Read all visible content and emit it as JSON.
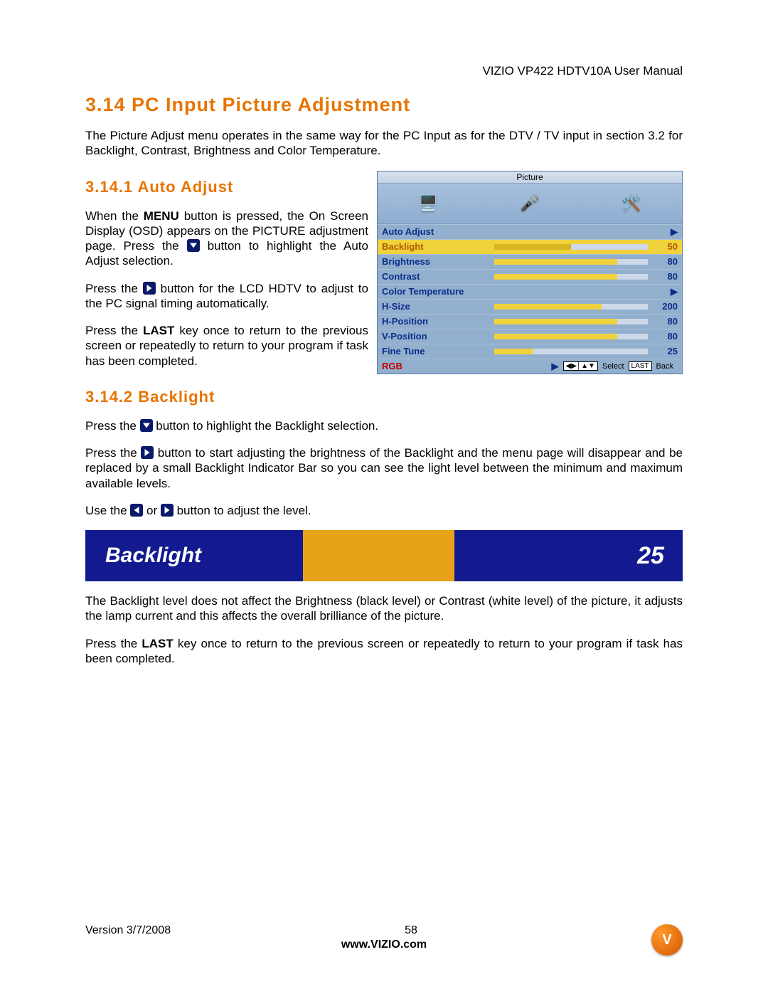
{
  "header": {
    "text": "VIZIO VP422 HDTV10A User Manual"
  },
  "h1": "3.14 PC Input Picture Adjustment",
  "intro": "The Picture Adjust menu operates in the same way for the PC Input as for the DTV / TV input in section 3.2 for Backlight, Contrast, Brightness and Color Temperature.",
  "s1": {
    "title": "3.14.1 Auto Adjust",
    "p1a": "When the ",
    "p1b": "MENU",
    "p1c": " button is pressed, the On Screen Display (OSD) appears on the PICTURE adjustment page.  Press the ",
    "p1d": " button to highlight the Auto Adjust selection.",
    "p2a": "Press the ",
    "p2b": " button for the LCD HDTV to adjust to the PC signal timing automatically.",
    "p3a": "Press the ",
    "p3b": "LAST",
    "p3c": " key once to return to the previous screen or repeatedly to return to your program if task has been completed."
  },
  "osd": {
    "title": "Picture",
    "rows": [
      {
        "label": "Auto Adjust",
        "value": "▶",
        "type": "arrow",
        "fillPct": 0
      },
      {
        "label": "Backlight",
        "value": "50",
        "type": "sel",
        "fillPct": 50
      },
      {
        "label": "Brightness",
        "value": "80",
        "type": "bar",
        "fillPct": 80
      },
      {
        "label": "Contrast",
        "value": "80",
        "type": "bar",
        "fillPct": 80
      },
      {
        "label": "Color Temperature",
        "value": "▶",
        "type": "arrow",
        "fillPct": 0
      },
      {
        "label": "H-Size",
        "value": "200",
        "type": "bar",
        "fillPct": 70
      },
      {
        "label": "H-Position",
        "value": "80",
        "type": "bar",
        "fillPct": 80
      },
      {
        "label": "V-Position",
        "value": "80",
        "type": "bar",
        "fillPct": 80
      },
      {
        "label": "Fine Tune",
        "value": "25",
        "type": "bar",
        "fillPct": 25
      },
      {
        "label": "RGB",
        "value": "▶",
        "type": "rgb",
        "fillPct": 0
      }
    ],
    "footSelect": "Select",
    "footBack": "Back",
    "footLast": "LAST",
    "footNav": "◀▶│▲▼"
  },
  "s2": {
    "title": "3.14.2 Backlight",
    "p1a": "Press the ",
    "p1b": " button to highlight the Backlight selection.",
    "p2a": "Press the ",
    "p2b": " button to start adjusting the brightness of the Backlight and the menu page will disappear and be replaced by a small Backlight Indicator Bar so you can see the light level between the minimum and maximum available levels.",
    "p3a": "Use the ",
    "p3b": " or ",
    "p3c": " button to adjust the level.",
    "bar": {
      "label": "Backlight",
      "value": "25",
      "fillPct": 48
    },
    "p4": "The Backlight level does not affect the Brightness (black level) or Contrast (white level) of the picture, it adjusts the lamp current and this affects the overall brilliance of the picture.",
    "p5a": "Press the ",
    "p5b": "LAST",
    "p5c": " key once to return to the previous screen or repeatedly to return to your program if task has been completed."
  },
  "footer": {
    "version": "Version 3/7/2008",
    "page": "58",
    "url": "www.VIZIO.com",
    "logo": "V"
  },
  "style": {
    "accent": "#e87400",
    "osdBlue": "#0b2e8a",
    "barBg": "#131a8f",
    "barFill": "#e8a21a"
  }
}
